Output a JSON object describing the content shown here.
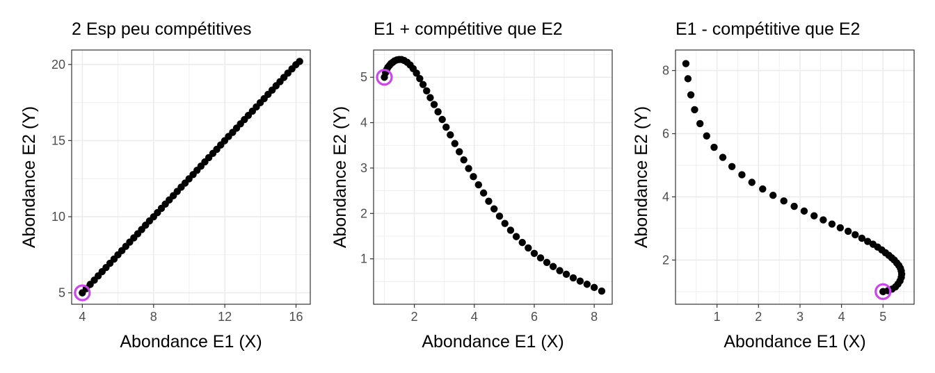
{
  "chart_data": [
    {
      "type": "scatter",
      "title": "2 Esp peu compétitives",
      "xlabel": "Abondance E1 (X)",
      "ylabel": "Abondance E2 (Y)",
      "xlim": [
        3.4,
        16.8
      ],
      "ylim": [
        4.25,
        20.95
      ],
      "x_ticks": [
        4,
        8,
        12,
        16
      ],
      "x_tick_labels": [
        "4",
        "8",
        "12",
        "16"
      ],
      "y_ticks": [
        5,
        10,
        15,
        20
      ],
      "y_tick_labels": [
        "5",
        "10",
        "15",
        "20"
      ],
      "grid": true,
      "point_color": "#000000",
      "start_marker_color": "#cc44ee",
      "start_point": {
        "x": 4.0,
        "y": 5.0
      },
      "points": [
        {
          "x": 4.0,
          "y": 5.0
        },
        {
          "x": 4.22,
          "y": 5.28
        },
        {
          "x": 4.44,
          "y": 5.55
        },
        {
          "x": 4.67,
          "y": 5.83
        },
        {
          "x": 4.89,
          "y": 6.11
        },
        {
          "x": 5.11,
          "y": 6.39
        },
        {
          "x": 5.33,
          "y": 6.66
        },
        {
          "x": 5.55,
          "y": 6.94
        },
        {
          "x": 5.78,
          "y": 7.22
        },
        {
          "x": 6.0,
          "y": 7.5
        },
        {
          "x": 6.22,
          "y": 7.77
        },
        {
          "x": 6.44,
          "y": 8.05
        },
        {
          "x": 6.66,
          "y": 8.33
        },
        {
          "x": 6.89,
          "y": 8.61
        },
        {
          "x": 7.11,
          "y": 8.88
        },
        {
          "x": 7.33,
          "y": 9.16
        },
        {
          "x": 7.55,
          "y": 9.44
        },
        {
          "x": 7.77,
          "y": 9.72
        },
        {
          "x": 8.0,
          "y": 9.99
        },
        {
          "x": 8.22,
          "y": 10.27
        },
        {
          "x": 8.44,
          "y": 10.55
        },
        {
          "x": 8.66,
          "y": 10.83
        },
        {
          "x": 8.88,
          "y": 11.1
        },
        {
          "x": 9.11,
          "y": 11.38
        },
        {
          "x": 9.33,
          "y": 11.66
        },
        {
          "x": 9.55,
          "y": 11.94
        },
        {
          "x": 9.77,
          "y": 12.21
        },
        {
          "x": 9.99,
          "y": 12.49
        },
        {
          "x": 10.22,
          "y": 12.77
        },
        {
          "x": 10.44,
          "y": 13.05
        },
        {
          "x": 10.66,
          "y": 13.32
        },
        {
          "x": 10.88,
          "y": 13.6
        },
        {
          "x": 11.1,
          "y": 13.88
        },
        {
          "x": 11.33,
          "y": 14.16
        },
        {
          "x": 11.55,
          "y": 14.43
        },
        {
          "x": 11.77,
          "y": 14.71
        },
        {
          "x": 11.99,
          "y": 14.99
        },
        {
          "x": 12.21,
          "y": 15.27
        },
        {
          "x": 12.44,
          "y": 15.54
        },
        {
          "x": 12.66,
          "y": 15.82
        },
        {
          "x": 12.88,
          "y": 16.1
        },
        {
          "x": 13.1,
          "y": 16.38
        },
        {
          "x": 13.32,
          "y": 16.65
        },
        {
          "x": 13.55,
          "y": 16.93
        },
        {
          "x": 13.77,
          "y": 17.21
        },
        {
          "x": 13.99,
          "y": 17.49
        },
        {
          "x": 14.21,
          "y": 17.76
        },
        {
          "x": 14.43,
          "y": 18.04
        },
        {
          "x": 14.66,
          "y": 18.32
        },
        {
          "x": 14.88,
          "y": 18.6
        },
        {
          "x": 15.1,
          "y": 18.87
        },
        {
          "x": 15.32,
          "y": 19.15
        },
        {
          "x": 15.54,
          "y": 19.43
        },
        {
          "x": 15.77,
          "y": 19.71
        },
        {
          "x": 15.99,
          "y": 19.98
        },
        {
          "x": 16.2,
          "y": 20.2
        }
      ]
    },
    {
      "type": "scatter",
      "title": "E1 + compétitive que E2",
      "xlabel": "Abondance E1 (X)",
      "ylabel": "Abondance E2 (Y)",
      "xlim": [
        0.64,
        8.6
      ],
      "ylim": [
        0.0,
        5.6
      ],
      "x_ticks": [
        2,
        4,
        6,
        8
      ],
      "x_tick_labels": [
        "2",
        "4",
        "6",
        "8"
      ],
      "y_ticks": [
        1,
        2,
        3,
        4,
        5
      ],
      "y_tick_labels": [
        "1",
        "2",
        "3",
        "4",
        "5"
      ],
      "grid": true,
      "point_color": "#000000",
      "start_marker_color": "#cc44ee",
      "start_point": {
        "x": 1.0,
        "y": 5.0
      },
      "points": [
        {
          "x": 1.0,
          "y": 5.0
        },
        {
          "x": 1.04,
          "y": 5.1
        },
        {
          "x": 1.08,
          "y": 5.17
        },
        {
          "x": 1.12,
          "y": 5.22
        },
        {
          "x": 1.17,
          "y": 5.26
        },
        {
          "x": 1.22,
          "y": 5.3
        },
        {
          "x": 1.28,
          "y": 5.33
        },
        {
          "x": 1.34,
          "y": 5.36
        },
        {
          "x": 1.41,
          "y": 5.38
        },
        {
          "x": 1.49,
          "y": 5.39
        },
        {
          "x": 1.57,
          "y": 5.39
        },
        {
          "x": 1.66,
          "y": 5.37
        },
        {
          "x": 1.76,
          "y": 5.33
        },
        {
          "x": 1.86,
          "y": 5.27
        },
        {
          "x": 1.96,
          "y": 5.19
        },
        {
          "x": 2.07,
          "y": 5.09
        },
        {
          "x": 2.18,
          "y": 4.97
        },
        {
          "x": 2.29,
          "y": 4.84
        },
        {
          "x": 2.41,
          "y": 4.7
        },
        {
          "x": 2.53,
          "y": 4.55
        },
        {
          "x": 2.66,
          "y": 4.4
        },
        {
          "x": 2.79,
          "y": 4.24
        },
        {
          "x": 2.93,
          "y": 4.07
        },
        {
          "x": 3.06,
          "y": 3.9
        },
        {
          "x": 3.2,
          "y": 3.73
        },
        {
          "x": 3.35,
          "y": 3.54
        },
        {
          "x": 3.5,
          "y": 3.36
        },
        {
          "x": 3.65,
          "y": 3.18
        },
        {
          "x": 3.81,
          "y": 2.99
        },
        {
          "x": 3.97,
          "y": 2.81
        },
        {
          "x": 4.14,
          "y": 2.63
        },
        {
          "x": 4.31,
          "y": 2.45
        },
        {
          "x": 4.48,
          "y": 2.27
        },
        {
          "x": 4.66,
          "y": 2.1
        },
        {
          "x": 4.84,
          "y": 1.94
        },
        {
          "x": 5.02,
          "y": 1.78
        },
        {
          "x": 5.21,
          "y": 1.63
        },
        {
          "x": 5.4,
          "y": 1.49
        },
        {
          "x": 5.6,
          "y": 1.36
        },
        {
          "x": 5.8,
          "y": 1.24
        },
        {
          "x": 6.0,
          "y": 1.12
        },
        {
          "x": 6.21,
          "y": 1.02
        },
        {
          "x": 6.42,
          "y": 0.92
        },
        {
          "x": 6.63,
          "y": 0.83
        },
        {
          "x": 6.85,
          "y": 0.74
        },
        {
          "x": 7.07,
          "y": 0.66
        },
        {
          "x": 7.3,
          "y": 0.58
        },
        {
          "x": 7.53,
          "y": 0.51
        },
        {
          "x": 7.76,
          "y": 0.44
        },
        {
          "x": 8.0,
          "y": 0.37
        },
        {
          "x": 8.25,
          "y": 0.29
        }
      ]
    },
    {
      "type": "scatter",
      "title": "E1 - compétitive que E2",
      "xlabel": "Abondance E1 (X)",
      "ylabel": "Abondance E2 (Y)",
      "xlim": [
        0.0,
        5.75
      ],
      "ylim": [
        0.6,
        8.65
      ],
      "x_ticks": [
        1,
        2,
        3,
        4,
        5
      ],
      "x_tick_labels": [
        "1",
        "2",
        "3",
        "4",
        "5"
      ],
      "y_ticks": [
        2,
        4,
        6,
        8
      ],
      "y_tick_labels": [
        "2",
        "4",
        "6",
        "8"
      ],
      "grid": true,
      "point_color": "#000000",
      "start_marker_color": "#cc44ee",
      "start_point": {
        "x": 5.0,
        "y": 1.0
      },
      "points": [
        {
          "x": 5.0,
          "y": 1.0
        },
        {
          "x": 5.12,
          "y": 1.03
        },
        {
          "x": 5.22,
          "y": 1.08
        },
        {
          "x": 5.3,
          "y": 1.15
        },
        {
          "x": 5.36,
          "y": 1.24
        },
        {
          "x": 5.41,
          "y": 1.34
        },
        {
          "x": 5.44,
          "y": 1.45
        },
        {
          "x": 5.45,
          "y": 1.55
        },
        {
          "x": 5.44,
          "y": 1.65
        },
        {
          "x": 5.42,
          "y": 1.74
        },
        {
          "x": 5.38,
          "y": 1.83
        },
        {
          "x": 5.33,
          "y": 1.91
        },
        {
          "x": 5.27,
          "y": 2.0
        },
        {
          "x": 5.21,
          "y": 2.07
        },
        {
          "x": 5.14,
          "y": 2.15
        },
        {
          "x": 5.06,
          "y": 2.23
        },
        {
          "x": 4.97,
          "y": 2.32
        },
        {
          "x": 4.87,
          "y": 2.41
        },
        {
          "x": 4.76,
          "y": 2.5
        },
        {
          "x": 4.63,
          "y": 2.59
        },
        {
          "x": 4.49,
          "y": 2.69
        },
        {
          "x": 4.33,
          "y": 2.8
        },
        {
          "x": 4.16,
          "y": 2.91
        },
        {
          "x": 3.97,
          "y": 3.02
        },
        {
          "x": 3.77,
          "y": 3.14
        },
        {
          "x": 3.56,
          "y": 3.27
        },
        {
          "x": 3.34,
          "y": 3.4
        },
        {
          "x": 3.1,
          "y": 3.55
        },
        {
          "x": 2.86,
          "y": 3.7
        },
        {
          "x": 2.61,
          "y": 3.87
        },
        {
          "x": 2.35,
          "y": 4.05
        },
        {
          "x": 2.1,
          "y": 4.25
        },
        {
          "x": 1.84,
          "y": 4.46
        },
        {
          "x": 1.6,
          "y": 4.7
        },
        {
          "x": 1.36,
          "y": 4.96
        },
        {
          "x": 1.14,
          "y": 5.25
        },
        {
          "x": 0.93,
          "y": 5.57
        },
        {
          "x": 0.75,
          "y": 5.93
        },
        {
          "x": 0.59,
          "y": 6.32
        },
        {
          "x": 0.46,
          "y": 6.76
        },
        {
          "x": 0.37,
          "y": 7.23
        },
        {
          "x": 0.3,
          "y": 7.74
        },
        {
          "x": 0.25,
          "y": 8.22
        }
      ]
    }
  ]
}
